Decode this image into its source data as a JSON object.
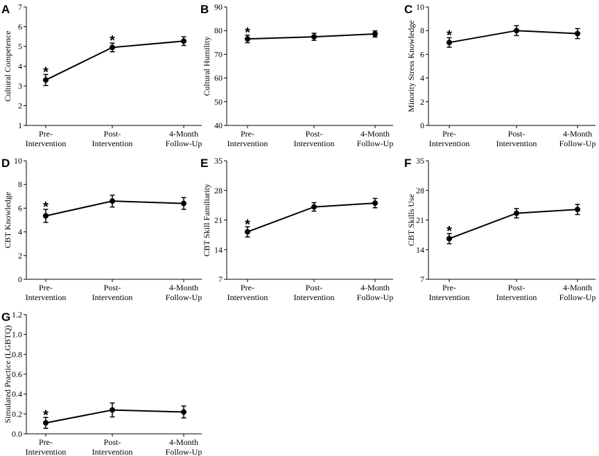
{
  "chart_data": [
    {
      "type": "line",
      "panel_label": "A",
      "ylabel": "Cultural Competence",
      "categories": [
        "Pre-\nIntervention",
        "Post-\nIntervention",
        "4-Month\nFollow-Up"
      ],
      "values": [
        3.3,
        4.95,
        5.27
      ],
      "errors": [
        0.28,
        0.22,
        0.22
      ],
      "significant": [
        true,
        true,
        false
      ],
      "ylim": [
        1,
        7
      ],
      "yticks": [
        1,
        2,
        3,
        4,
        5,
        6,
        7
      ]
    },
    {
      "type": "line",
      "panel_label": "B",
      "ylabel": "Cultural Humility",
      "categories": [
        "Pre-\nIntervention",
        "Post-\nIntervention",
        "4-Month\nFollow-Up"
      ],
      "values": [
        76.5,
        77.4,
        78.6
      ],
      "errors": [
        1.6,
        1.5,
        1.3
      ],
      "significant": [
        true,
        false,
        false
      ],
      "ylim": [
        40,
        90
      ],
      "yticks": [
        40,
        50,
        60,
        70,
        80,
        90
      ]
    },
    {
      "type": "line",
      "panel_label": "C",
      "ylabel": "Minority Stress Knowledge",
      "categories": [
        "Pre-\nIntervention",
        "Post-\nIntervention",
        "4-Month\nFollow-Up"
      ],
      "values": [
        7.0,
        8.0,
        7.75
      ],
      "errors": [
        0.4,
        0.42,
        0.42
      ],
      "significant": [
        true,
        false,
        false
      ],
      "ylim": [
        0,
        10
      ],
      "yticks": [
        0,
        2,
        4,
        6,
        8,
        10
      ]
    },
    {
      "type": "line",
      "panel_label": "D",
      "ylabel": "CBT Knowledge",
      "categories": [
        "Pre-\nIntervention",
        "Post-\nIntervention",
        "4-Month\nFollow-Up"
      ],
      "values": [
        5.35,
        6.6,
        6.4
      ],
      "errors": [
        0.55,
        0.5,
        0.5
      ],
      "significant": [
        true,
        false,
        false
      ],
      "ylim": [
        0,
        10
      ],
      "yticks": [
        0,
        2,
        4,
        6,
        8,
        10
      ]
    },
    {
      "type": "line",
      "panel_label": "E",
      "ylabel": "CBT Skill Familiarity",
      "categories": [
        "Pre-\nIntervention",
        "Post-\nIntervention",
        "4-Month\nFollow-Up"
      ],
      "values": [
        18.2,
        24.1,
        25.0
      ],
      "errors": [
        1.2,
        1.0,
        1.1
      ],
      "significant": [
        true,
        false,
        false
      ],
      "ylim": [
        7,
        35
      ],
      "yticks": [
        7,
        14,
        21,
        28,
        35
      ]
    },
    {
      "type": "line",
      "panel_label": "F",
      "ylabel": "CBT Skills Use",
      "categories": [
        "Pre-\nIntervention",
        "Post-\nIntervention",
        "4-Month\nFollow-Up"
      ],
      "values": [
        16.6,
        22.6,
        23.5
      ],
      "errors": [
        1.2,
        1.1,
        1.2
      ],
      "significant": [
        true,
        false,
        false
      ],
      "ylim": [
        7,
        35
      ],
      "yticks": [
        7,
        14,
        21,
        28,
        35
      ]
    },
    {
      "type": "line",
      "panel_label": "G",
      "ylabel": "Simulated Practice (LGBTQ)",
      "categories": [
        "Pre-\nIntervention",
        "Post-\nIntervention",
        "4-Month\nFollow-Up"
      ],
      "values": [
        0.11,
        0.24,
        0.22
      ],
      "errors": [
        0.055,
        0.07,
        0.06
      ],
      "significant": [
        true,
        false,
        false
      ],
      "ylim": [
        0,
        1.2
      ],
      "yticks": [
        "0.0",
        "0.2",
        "0.4",
        "0.6",
        "0.8",
        "1.0",
        "1.2"
      ]
    }
  ],
  "significance_marker": "*"
}
